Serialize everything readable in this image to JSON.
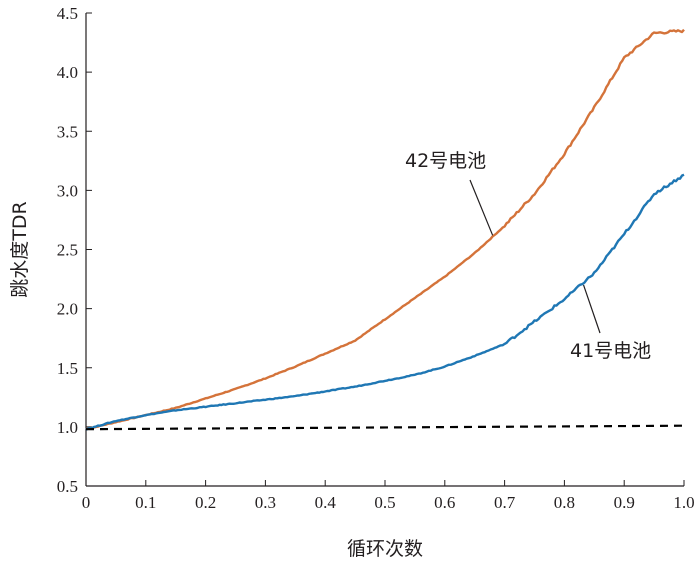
{
  "chart_data": {
    "type": "line",
    "xlabel": "循环次数",
    "ylabel": "跳水度TDR",
    "xlim": [
      0,
      1.0
    ],
    "ylim": [
      0.5,
      4.5
    ],
    "x_ticks": [
      "0",
      "0.1",
      "0.2",
      "0.3",
      "0.4",
      "0.5",
      "0.6",
      "0.7",
      "0.8",
      "0.9",
      "1.0"
    ],
    "y_ticks": [
      "0.5",
      "1.0",
      "1.5",
      "2.0",
      "2.5",
      "3.0",
      "3.5",
      "4.0",
      "4.5"
    ],
    "grid": false,
    "series": [
      {
        "name": "42号电池",
        "color": "#d4733a",
        "style": "solid",
        "x": [
          0,
          0.05,
          0.1,
          0.15,
          0.2,
          0.25,
          0.3,
          0.35,
          0.4,
          0.45,
          0.5,
          0.55,
          0.6,
          0.65,
          0.7,
          0.75,
          0.8,
          0.85,
          0.9,
          0.95,
          1.0
        ],
        "y": [
          0.98,
          1.04,
          1.1,
          1.16,
          1.24,
          1.32,
          1.41,
          1.51,
          1.62,
          1.73,
          1.91,
          2.09,
          2.27,
          2.47,
          2.7,
          2.97,
          3.31,
          3.7,
          4.12,
          4.33,
          4.35
        ]
      },
      {
        "name": "41号电池",
        "color": "#1f77b4",
        "style": "solid",
        "x": [
          0,
          0.05,
          0.1,
          0.15,
          0.2,
          0.25,
          0.3,
          0.35,
          0.4,
          0.45,
          0.5,
          0.55,
          0.6,
          0.65,
          0.7,
          0.75,
          0.8,
          0.85,
          0.9,
          0.95,
          1.0
        ],
        "y": [
          0.98,
          1.05,
          1.1,
          1.14,
          1.17,
          1.2,
          1.23,
          1.26,
          1.3,
          1.34,
          1.39,
          1.44,
          1.51,
          1.6,
          1.7,
          1.89,
          2.08,
          2.3,
          2.63,
          2.97,
          3.13
        ]
      },
      {
        "name": "",
        "color": "#000000",
        "style": "dashed",
        "x": [
          0,
          1.0
        ],
        "y": [
          0.98,
          1.01
        ]
      }
    ],
    "annotations": [
      {
        "text": "42号电池"
      },
      {
        "text": "41号电池"
      }
    ]
  }
}
